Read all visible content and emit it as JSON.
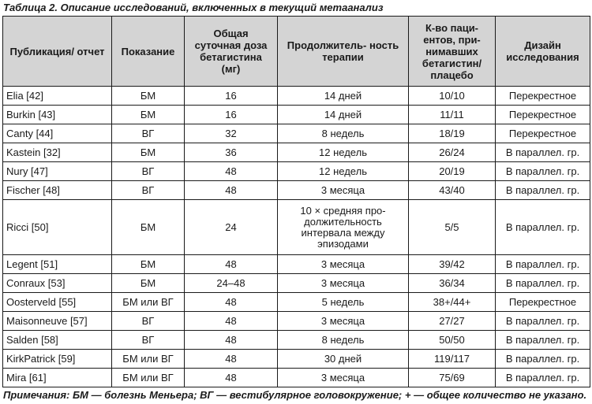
{
  "caption": {
    "lead": "Таблица 2.",
    "rest": " Описание исследований, включенных в текущий метаанализ"
  },
  "headers": [
    "Публикация/ отчет",
    "Показание",
    "Общая суточная доза бетагистина (мг)",
    "Продолжитель- ность терапии",
    "К-во паци- ентов, при- нимавших бетагистин/ плацебо",
    "Дизайн исследования"
  ],
  "rows": [
    [
      "Elia [42]",
      "БМ",
      "16",
      "14 дней",
      "10/10",
      "Перекрестное"
    ],
    [
      "Burkin [43]",
      "БМ",
      "16",
      "14 дней",
      "11/11",
      "Перекрестное"
    ],
    [
      "Canty [44]",
      "ВГ",
      "32",
      "8 недель",
      "18/19",
      "Перекрестное"
    ],
    [
      "Kastein [32]",
      "БМ",
      "36",
      "12 недель",
      "26/24",
      "В параллел. гр."
    ],
    [
      "Nury [47]",
      "ВГ",
      "48",
      "12 недель",
      "20/19",
      "В параллел. гр."
    ],
    [
      "Fischer [48]",
      "ВГ",
      "48",
      "3 месяца",
      "43/40",
      "В параллел. гр."
    ],
    [
      "Ricci [50]",
      "БМ",
      "24",
      "10 × средняя про- должительность интервала между эпизодами",
      "5/5",
      "В параллел. гр."
    ],
    [
      "Legent [51]",
      "БМ",
      "48",
      "3 месяца",
      "39/42",
      "В параллел. гр."
    ],
    [
      "Conraux [53]",
      "БМ",
      "24–48",
      "3 месяца",
      "36/34",
      "В параллел. гр."
    ],
    [
      "Oosterveld [55]",
      "БМ или ВГ",
      "48",
      "5 недель",
      "38+/44+",
      "Перекрестное"
    ],
    [
      "Maisonneuve [57]",
      "ВГ",
      "48",
      "3 месяца",
      "27/27",
      "В параллел. гр."
    ],
    [
      "Salden [58]",
      "ВГ",
      "48",
      "8 недель",
      "50/50",
      "В параллел. гр."
    ],
    [
      "KirkPatrick [59]",
      "БМ или ВГ",
      "48",
      "30 дней",
      "119/117",
      "В параллел. гр."
    ],
    [
      "Mira [61]",
      "БМ или ВГ",
      "48",
      "3 месяца",
      "75/69",
      "В параллел. гр."
    ]
  ],
  "notes": "Примечания: БМ — болезнь Меньера; ВГ — вестибулярное головокружение; + — общее количество не указано."
}
